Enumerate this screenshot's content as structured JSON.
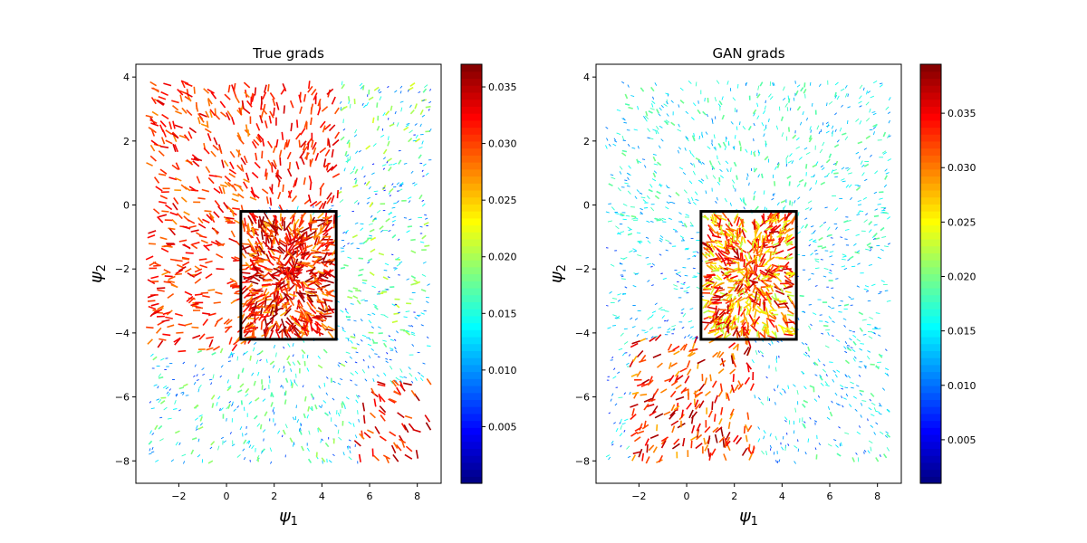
{
  "chart_data": [
    {
      "type": "quiver",
      "title": "True grads",
      "xlabel": "ψ",
      "xlabel_sub": "1",
      "ylabel": "ψ",
      "ylabel_sub": "2",
      "xlim": [
        -3.8,
        9.0
      ],
      "ylim": [
        -8.7,
        4.4
      ],
      "xticks": [
        -2,
        0,
        2,
        4,
        6,
        8
      ],
      "yticks": [
        4,
        2,
        0,
        -2,
        -4,
        -6,
        -8
      ],
      "colorbar": {
        "colormap": "jet",
        "range": [
          0.0,
          0.037
        ],
        "ticks": [
          0.005,
          0.01,
          0.015,
          0.02,
          0.025,
          0.03,
          0.035
        ],
        "tick_labels": [
          "0.005",
          "0.010",
          "0.015",
          "0.020",
          "0.025",
          "0.030",
          "0.035"
        ]
      },
      "rectangle": {
        "x": [
          0.6,
          4.6
        ],
        "y": [
          -4.2,
          -0.2
        ],
        "color": "#000000"
      },
      "regions": [
        {
          "x": [
            -3.4,
            1.0
          ],
          "y": [
            -4.6,
            3.9
          ],
          "magnitude": [
            0.027,
            0.034
          ]
        },
        {
          "x": [
            1.0,
            4.8
          ],
          "y": [
            0.0,
            3.9
          ],
          "magnitude": [
            0.029,
            0.034
          ]
        },
        {
          "x": [
            0.6,
            4.6
          ],
          "y": [
            -4.2,
            -0.2
          ],
          "magnitude": [
            0.026,
            0.037
          ]
        },
        {
          "x": [
            4.8,
            8.6
          ],
          "y": [
            -4.5,
            3.9
          ],
          "magnitude": [
            0.005,
            0.022
          ]
        },
        {
          "x": [
            -3.4,
            5.0
          ],
          "y": [
            -8.1,
            -4.6
          ],
          "magnitude": [
            0.006,
            0.02
          ]
        },
        {
          "x": [
            5.6,
            8.6
          ],
          "y": [
            -8.1,
            -5.6
          ],
          "magnitude": [
            0.028,
            0.036
          ]
        }
      ]
    },
    {
      "type": "quiver",
      "title": "GAN grads",
      "xlabel": "ψ",
      "xlabel_sub": "1",
      "ylabel": "ψ",
      "ylabel_sub": "2",
      "xlim": [
        -3.8,
        9.0
      ],
      "ylim": [
        -8.7,
        4.4
      ],
      "xticks": [
        -2,
        0,
        2,
        4,
        6,
        8
      ],
      "yticks": [
        4,
        2,
        0,
        -2,
        -4,
        -6,
        -8
      ],
      "colorbar": {
        "colormap": "jet",
        "range": [
          0.001,
          0.0395
        ],
        "ticks": [
          0.005,
          0.01,
          0.015,
          0.02,
          0.025,
          0.03,
          0.035
        ],
        "tick_labels": [
          "0.005",
          "0.010",
          "0.015",
          "0.020",
          "0.025",
          "0.030",
          "0.035"
        ]
      },
      "rectangle": {
        "x": [
          0.6,
          4.6
        ],
        "y": [
          -4.2,
          -0.2
        ],
        "color": "#000000"
      },
      "regions": [
        {
          "x": [
            -3.4,
            8.6
          ],
          "y": [
            -1.0,
            3.9
          ],
          "magnitude": [
            0.01,
            0.02
          ]
        },
        {
          "x": [
            0.6,
            4.6
          ],
          "y": [
            -4.2,
            -0.2
          ],
          "magnitude": [
            0.022,
            0.038
          ]
        },
        {
          "x": [
            -2.4,
            2.8
          ],
          "y": [
            -8.1,
            -4.2
          ],
          "magnitude": [
            0.028,
            0.039
          ]
        },
        {
          "x": [
            4.8,
            8.6
          ],
          "y": [
            -8.1,
            -1.0
          ],
          "magnitude": [
            0.008,
            0.02
          ]
        }
      ]
    }
  ]
}
